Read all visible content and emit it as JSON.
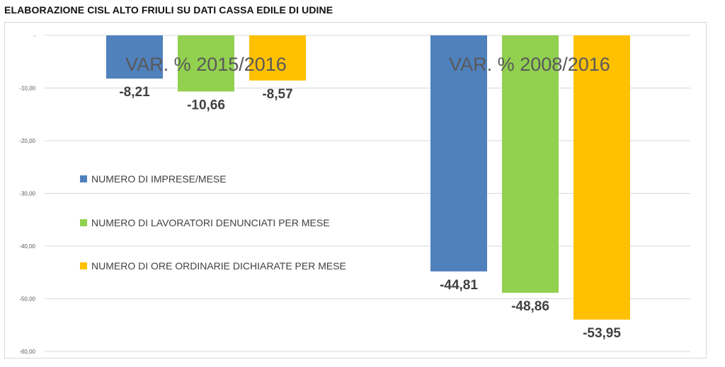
{
  "title": "ELABORAZIONE CISL ALTO FRIULI SU DATI CASSA EDILE DI UDINE",
  "chart_data": {
    "type": "bar",
    "categories": [
      "VAR. % 2015/2016",
      "VAR. % 2008/2016"
    ],
    "series": [
      {
        "name": "NUMERO DI IMPRESE/MESE",
        "color": "#4f81bd",
        "values": [
          -8.21,
          -44.81
        ],
        "labels": [
          "-8,21",
          "-44,81"
        ]
      },
      {
        "name": "NUMERO DI LAVORATORI DENUNCIATI PER MESE",
        "color": "#92d050",
        "values": [
          -10.66,
          -48.86
        ],
        "labels": [
          "-10,66",
          "-48,86"
        ]
      },
      {
        "name": "NUMERO DI ORE ORDINARIE DICHIARATE PER MESE",
        "color": "#ffc000",
        "values": [
          -8.57,
          -53.95
        ],
        "labels": [
          "-8,57",
          "-53,95"
        ]
      }
    ],
    "ylim": [
      -60,
      0
    ],
    "yticks": [
      0,
      -10,
      -20,
      -30,
      -40,
      -50,
      -60
    ],
    "ytick_labels": [
      "-",
      "-10,00",
      "-20,00",
      "-30,00",
      "-40,00",
      "-50,00",
      "-60,00"
    ],
    "grid": true,
    "legend_position": "left-middle"
  }
}
